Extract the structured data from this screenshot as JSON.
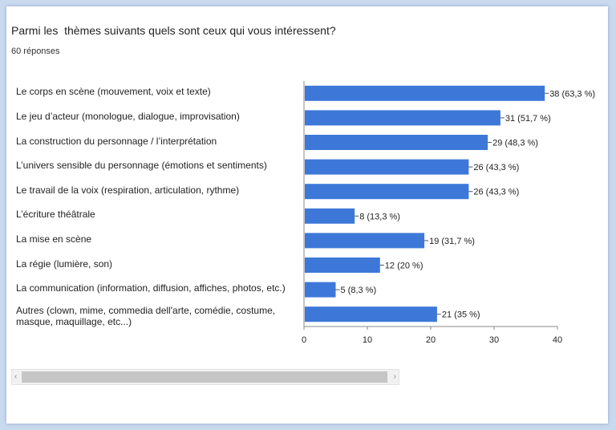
{
  "title": "Parmi les  thèmes suivants quels sont ceux qui vous intéressent?",
  "responses": "60 réponses",
  "chart_data": {
    "type": "bar",
    "orientation": "horizontal",
    "categories": [
      "Le corps en scène (mouvement, voix et texte)",
      "Le jeu d’acteur (monologue, dialogue, improvisation)",
      "La construction du personnage / l’interprétation",
      "L’univers sensible du personnage (émotions et sentiments)",
      "Le travail de la voix (respiration, articulation, rythme)",
      "L’écriture théâtrale",
      "La mise en scène",
      "La régie (lumière, son)",
      "La communication (information, diffusion, affiches, photos, etc.)",
      "Autres (clown, mime, commedia dell'arte, comédie, costume, masque, maquillage, etc...)"
    ],
    "values": [
      38,
      31,
      29,
      26,
      26,
      8,
      19,
      12,
      5,
      21
    ],
    "value_labels": [
      "38 (63,3 %)",
      "31 (51,7 %)",
      "29 (48,3 %)",
      "26 (43,3 %)",
      "26 (43,3 %)",
      "8 (13,3 %)",
      "19 (31,7 %)",
      "12 (20 %)",
      "5 (8,3 %)",
      "21 (35 %)"
    ],
    "xlim": [
      0,
      40
    ],
    "xticks": [
      0,
      10,
      20,
      30,
      40
    ],
    "bar_color": "#3d78d8",
    "grid": false
  },
  "scrollbar": {
    "left_arrow": "‹",
    "right_arrow": "›"
  }
}
